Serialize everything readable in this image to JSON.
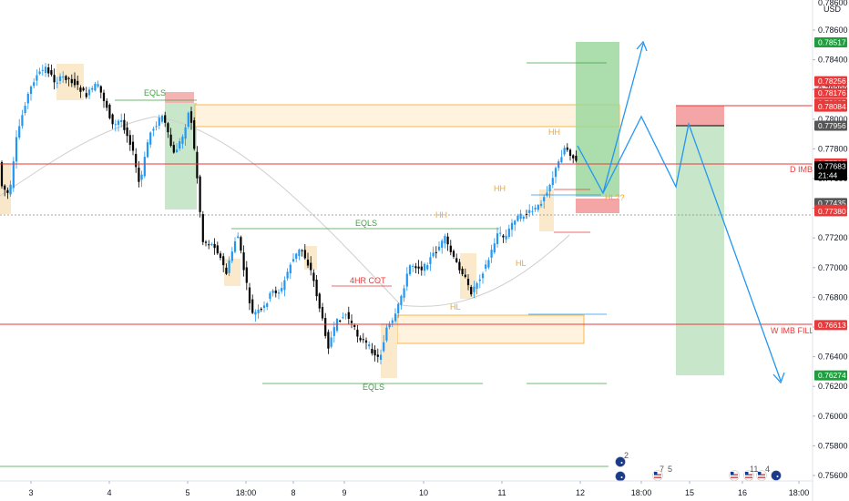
{
  "chart_data": {
    "type": "candlestick",
    "currency": "USD",
    "y_axis": {
      "ticks": [
        "0.78600",
        "0.78400",
        "0.78200",
        "0.78000",
        "0.77800",
        "0.77600",
        "0.77400",
        "0.77200",
        "0.77000",
        "0.76800",
        "0.76600",
        "0.76400",
        "0.76200",
        "0.76000",
        "0.75800",
        "0.75600"
      ],
      "range": [
        0.7553,
        0.7868
      ]
    },
    "x_axis": {
      "ticks": [
        "3",
        "4",
        "5",
        "18:00",
        "8",
        "9",
        "10",
        "11",
        "12",
        "18:00",
        "15",
        "16",
        "18:00"
      ]
    },
    "price_badges": [
      {
        "label": "0.78517",
        "value": 0.78517,
        "color": "#1e9e3c"
      },
      {
        "label": "0.78256",
        "value": 0.78256,
        "color": "#e83a3a"
      },
      {
        "label": "0.78176",
        "value": 0.78176,
        "color": "#e83a3a"
      },
      {
        "label": "0.78105",
        "value": 0.78105,
        "color": "#e83a3a"
      },
      {
        "label": "0.78088",
        "value": 0.78088,
        "color": "#e83a3a"
      },
      {
        "label": "0.78084",
        "value": 0.78084,
        "color": "#e83a3a"
      },
      {
        "label": "0.77956",
        "value": 0.77956,
        "color": "#555555"
      },
      {
        "label": "0.77702",
        "value": 0.77702,
        "color": "#e83a3a"
      },
      {
        "label": "0.77683",
        "value": 0.77683,
        "color": "#000000"
      },
      {
        "label": "21:44",
        "value": 0.77683,
        "color": "#000000"
      },
      {
        "label": "0.77435",
        "value": 0.77435,
        "color": "#555555"
      },
      {
        "label": "0.77390",
        "value": 0.7739,
        "color": "#e83a3a"
      },
      {
        "label": "0.77380",
        "value": 0.7738,
        "color": "#e83a3a"
      },
      {
        "label": "0.76613",
        "value": 0.76613,
        "color": "#e83a3a"
      },
      {
        "label": "0.76274",
        "value": 0.76274,
        "color": "#1e9e3c"
      }
    ],
    "annotations": [
      {
        "text": "EQLS",
        "color": "#43a047"
      },
      {
        "text": "EQLS",
        "color": "#43a047"
      },
      {
        "text": "EQLS",
        "color": "#43a047"
      },
      {
        "text": "HH",
        "color": "#f5a623"
      },
      {
        "text": "HH",
        "color": "#f5a623"
      },
      {
        "text": "HH",
        "color": "#f5a623"
      },
      {
        "text": "HL",
        "color": "#f5a623"
      },
      {
        "text": "HL",
        "color": "#f5a623"
      },
      {
        "text": "HL??",
        "color": "#f5a623"
      },
      {
        "text": "4HR COT",
        "color": "#e83a3a"
      },
      {
        "text": "D IMB",
        "color": "#e83a3a"
      },
      {
        "text": "W IMB FILL",
        "color": "#e83a3a"
      }
    ],
    "event_badges": [
      "2",
      "7",
      "5",
      "11",
      "4"
    ],
    "colors": {
      "up": "#2196f3",
      "down": "#000000",
      "level": "#e83a3a",
      "zone": "#f5a623",
      "target": "#1e9e3c",
      "projection": "#2196f3"
    }
  }
}
